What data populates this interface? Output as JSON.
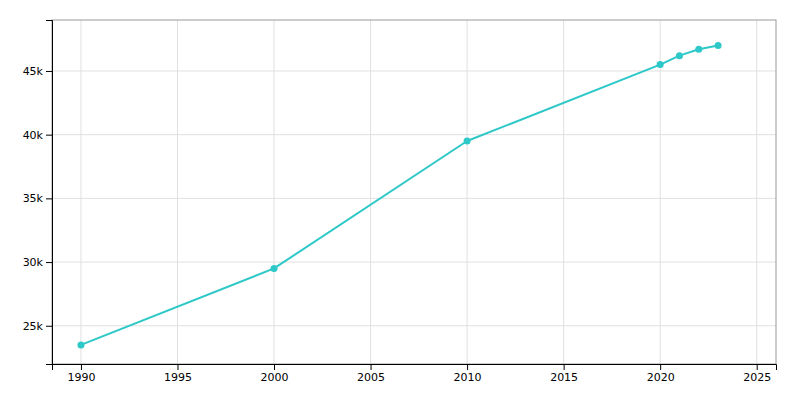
{
  "chart_data": {
    "type": "line",
    "x": [
      1990,
      2000,
      2010,
      2020,
      2021,
      2022,
      2023
    ],
    "values": [
      23500,
      29500,
      39500,
      45500,
      46200,
      46700,
      47000
    ],
    "color": "#2ec8c8",
    "marker": "circle",
    "xlim": [
      1988.5,
      2026
    ],
    "ylim": [
      22000,
      49000
    ],
    "xticks": [
      1990,
      1995,
      2000,
      2005,
      2010,
      2015,
      2020,
      2025
    ],
    "yticks": [
      {
        "value": 25000,
        "label": "25k"
      },
      {
        "value": 30000,
        "label": "30k"
      },
      {
        "value": 35000,
        "label": "35k"
      },
      {
        "value": 40000,
        "label": "40k"
      },
      {
        "value": 45000,
        "label": "45k"
      }
    ],
    "grid": true
  }
}
